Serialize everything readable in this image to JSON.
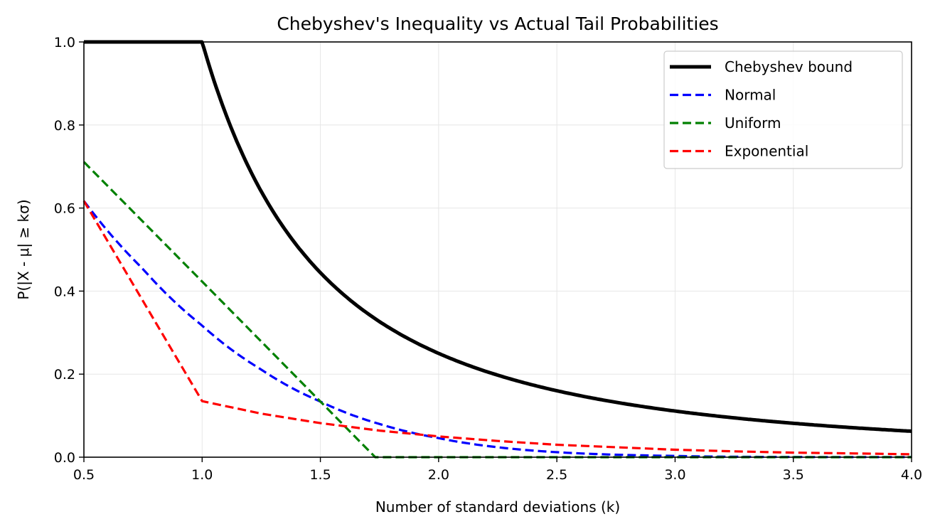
{
  "chart_data": {
    "type": "line",
    "title": "Chebyshev's Inequality vs Actual Tail Probabilities",
    "xlabel": "Number of standard deviations (k)",
    "ylabel": "P(|X - μ| ≥ kσ)",
    "xlim": [
      0.5,
      4.0
    ],
    "ylim": [
      0.0,
      1.0
    ],
    "xticks": [
      "0.5",
      "1.0",
      "1.5",
      "2.0",
      "2.5",
      "3.0",
      "3.5",
      "4.0"
    ],
    "yticks": [
      "0.0",
      "0.2",
      "0.4",
      "0.6",
      "0.8",
      "1.0"
    ],
    "grid": true,
    "legend_position": "top-right",
    "series": [
      {
        "name": "Chebyshev bound",
        "color": "#000000",
        "style": "solid",
        "x": [
          0.5,
          1.0,
          1.1,
          1.2,
          1.3,
          1.4,
          1.5,
          1.75,
          2.0,
          2.25,
          2.5,
          2.75,
          3.0,
          3.25,
          3.5,
          3.75,
          4.0
        ],
        "y": [
          1.0,
          1.0,
          0.826,
          0.694,
          0.592,
          0.51,
          0.444,
          0.327,
          0.25,
          0.198,
          0.16,
          0.132,
          0.111,
          0.095,
          0.082,
          0.071,
          0.0625
        ]
      },
      {
        "name": "Normal",
        "color": "#0000ff",
        "style": "dashed",
        "x": [
          0.5,
          0.75,
          1.0,
          1.25,
          1.5,
          1.75,
          2.0,
          2.25,
          2.5,
          2.75,
          3.0,
          3.25,
          3.5,
          3.75,
          4.0
        ],
        "y": [
          0.617,
          0.453,
          0.317,
          0.211,
          0.134,
          0.08,
          0.046,
          0.024,
          0.012,
          0.006,
          0.003,
          0.001,
          0.0005,
          0.0002,
          0.0001
        ]
      },
      {
        "name": "Uniform",
        "color": "#008000",
        "style": "dashed",
        "x": [
          0.5,
          1.0,
          1.5,
          1.732,
          2.0,
          2.5,
          3.0,
          3.5,
          4.0
        ],
        "y": [
          0.711,
          0.423,
          0.134,
          0.0,
          0.0,
          0.0,
          0.0,
          0.0,
          0.0
        ]
      },
      {
        "name": "Exponential",
        "color": "#ff0000",
        "style": "dashed",
        "x": [
          0.5,
          1.0,
          1.25,
          1.5,
          1.75,
          2.0,
          2.25,
          2.5,
          2.75,
          3.0,
          3.25,
          3.5,
          3.75,
          4.0
        ],
        "y": [
          0.617,
          0.135,
          0.105,
          0.082,
          0.064,
          0.05,
          0.039,
          0.03,
          0.024,
          0.018,
          0.014,
          0.011,
          0.009,
          0.007
        ]
      }
    ]
  }
}
